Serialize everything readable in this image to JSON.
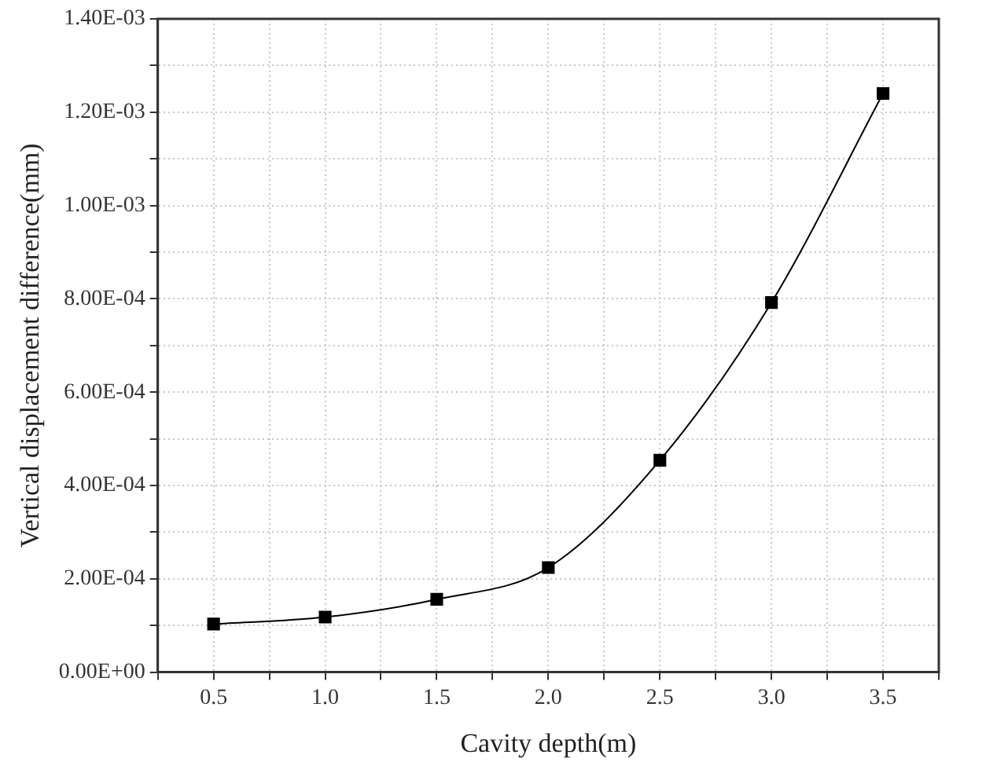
{
  "chart_data": {
    "type": "line",
    "xlabel": "Cavity depth(m)",
    "ylabel": "Vertical displacement difference(mm)",
    "x": [
      0.5,
      1.0,
      1.5,
      2.0,
      2.5,
      3.0,
      3.5
    ],
    "series": [
      {
        "color": "#000000",
        "values": [
          0.000103,
          0.000118,
          0.000156,
          0.000224,
          0.000454,
          0.000792,
          0.00124
        ]
      }
    ],
    "xlim": [
      0.25,
      3.75
    ],
    "xticks": [
      {
        "value": 0.25,
        "label": null
      },
      {
        "value": 0.5,
        "label": "0.5"
      },
      {
        "value": 0.75,
        "label": null
      },
      {
        "value": 1.0,
        "label": "1.0"
      },
      {
        "value": 1.25,
        "label": null
      },
      {
        "value": 1.5,
        "label": "1.5"
      },
      {
        "value": 1.75,
        "label": null
      },
      {
        "value": 2.0,
        "label": "2.0"
      },
      {
        "value": 2.25,
        "label": null
      },
      {
        "value": 2.5,
        "label": "2.5"
      },
      {
        "value": 2.75,
        "label": null
      },
      {
        "value": 3.0,
        "label": "3.0"
      },
      {
        "value": 3.25,
        "label": null
      },
      {
        "value": 3.5,
        "label": "3.5"
      },
      {
        "value": 3.75,
        "label": null
      }
    ],
    "ylim": [
      0,
      0.0014
    ],
    "yticks": [
      {
        "value": 0,
        "label": "0.00E+00"
      },
      {
        "value": 0.0001,
        "label": null
      },
      {
        "value": 0.0002,
        "label": "2.00E-04"
      },
      {
        "value": 0.0003,
        "label": null
      },
      {
        "value": 0.0004,
        "label": "4.00E-04"
      },
      {
        "value": 0.0005,
        "label": null
      },
      {
        "value": 0.0006,
        "label": "6.00E-04"
      },
      {
        "value": 0.0007,
        "label": null
      },
      {
        "value": 0.0008,
        "label": "8.00E-04"
      },
      {
        "value": 0.0009,
        "label": null
      },
      {
        "value": 0.001,
        "label": "1.00E-03"
      },
      {
        "value": 0.0011,
        "label": null
      },
      {
        "value": 0.0012,
        "label": "1.20E-03"
      },
      {
        "value": 0.0013,
        "label": null
      },
      {
        "value": 0.0014,
        "label": "1.40E-03"
      }
    ],
    "grid": true,
    "legend": false,
    "marker": "square",
    "line_style": "solid"
  }
}
